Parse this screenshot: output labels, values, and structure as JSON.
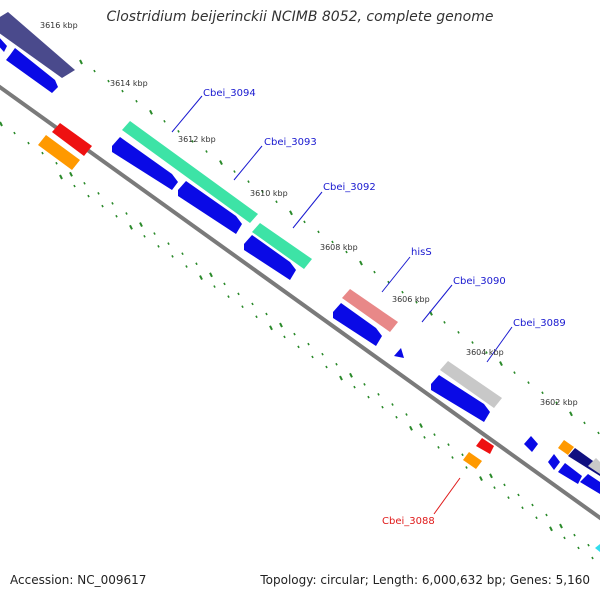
{
  "header": {
    "title": "Clostridium beijerinckii NCIMB 8052, complete genome"
  },
  "footer": {
    "accession": "Accession: NC_009617",
    "summary": "Topology: circular; Length: 6,000,632 bp; Genes: 5,160"
  },
  "scale_labels": [
    "3616 kbp",
    "3614 kbp",
    "3612 kbp",
    "3610 kbp",
    "3608 kbp",
    "3606 kbp",
    "3604 kbp",
    "3602 kbp"
  ],
  "gene_labels": {
    "cbei_3094": "Cbei_3094",
    "cbei_3093": "Cbei_3093",
    "cbei_3092": "Cbei_3092",
    "hisS": "hisS",
    "cbei_3090": "Cbei_3090",
    "cbei_3089": "Cbei_3089",
    "cbei_3088": "Cbei_3088"
  },
  "colors": {
    "cds": "#0a0ae6",
    "gene_highlight": "#3de3a6",
    "hisS": "#e88888",
    "grey_feature": "#c8c8c8",
    "rna_red": "#ee1111",
    "rna_orange": "#ff9900",
    "navy": "#4a4a8c",
    "backbone": "#7a7a7a",
    "tick": "#2a8a2a",
    "label_blue": "#1a1ad0",
    "label_red": "#e01a1a"
  }
}
